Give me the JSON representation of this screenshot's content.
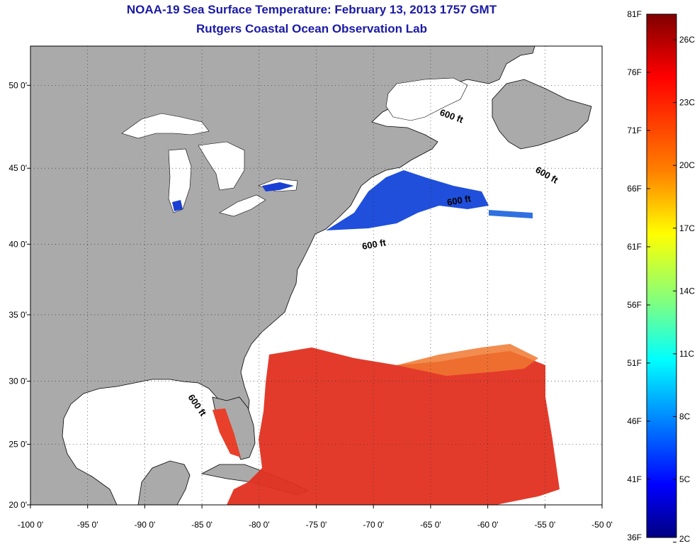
{
  "title": "NOAA-19 Sea Surface Temperature:  February 13, 2013 1757 GMT",
  "subtitle": "Rutgers Coastal Ocean Observation Lab",
  "map": {
    "x_ticks": [
      {
        "lon": -100,
        "label": "-100 0'"
      },
      {
        "lon": -95,
        "label": "-95 0'"
      },
      {
        "lon": -90,
        "label": "-90 0'"
      },
      {
        "lon": -85,
        "label": "-85 0'"
      },
      {
        "lon": -80,
        "label": "-80 0'"
      },
      {
        "lon": -75,
        "label": "-75 0'"
      },
      {
        "lon": -70,
        "label": "-70 0'"
      },
      {
        "lon": -65,
        "label": "-65 0'"
      },
      {
        "lon": -60,
        "label": "-60 0'"
      },
      {
        "lon": -55,
        "label": "-55 0'"
      },
      {
        "lon": -50,
        "label": "-50 0'"
      }
    ],
    "y_ticks": [
      {
        "lat": 50,
        "label": "50 0'"
      },
      {
        "lat": 45,
        "label": "45 0'"
      },
      {
        "lat": 40,
        "label": "40 0'"
      },
      {
        "lat": 35,
        "label": "35 0'"
      },
      {
        "lat": 30,
        "label": "30 0'"
      },
      {
        "lat": 25,
        "label": "25 0'"
      },
      {
        "lat": 20,
        "label": "20 0'"
      }
    ],
    "contour_labels": [
      "600 ft",
      "600 ft",
      "600 ft",
      "600 ft",
      "600 ft"
    ],
    "land_color": "#aaaaaa",
    "no_data_color": "#ffffff"
  },
  "colorbar": {
    "fahrenheit_labels": [
      "81F",
      "76F",
      "71F",
      "66F",
      "61F",
      "56F",
      "51F",
      "46F",
      "41F",
      "36F"
    ],
    "celsius_labels": [
      "26C",
      "23C",
      "20C",
      "17C",
      "14C",
      "11C",
      "8C",
      "5C",
      "2C"
    ],
    "colors_top_to_bottom": [
      "#800000",
      "#ff0000",
      "#ff8000",
      "#ffff00",
      "#80ff80",
      "#00ffff",
      "#0080ff",
      "#0000ff",
      "#000080"
    ]
  }
}
